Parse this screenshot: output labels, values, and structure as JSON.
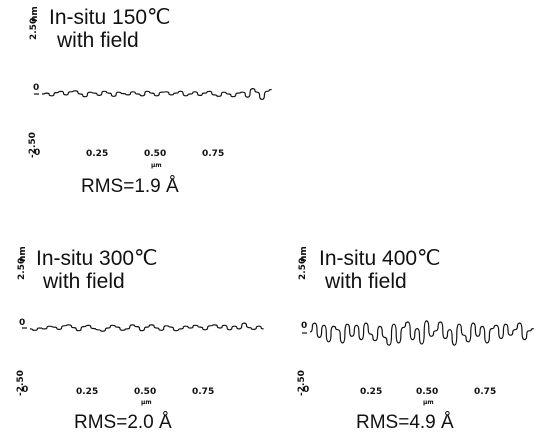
{
  "chart_data": [
    {
      "type": "line",
      "title": "In-situ 150℃",
      "subtitle": "with field",
      "annotation": "RMS=1.9 Å",
      "xlabel": "µm",
      "ylabel": "nm",
      "ytick_labels": [
        "2.50",
        "0",
        "-2.50"
      ],
      "xtick_labels": [
        "0",
        "0.25",
        "0.50",
        "0.75"
      ],
      "ylim": [
        -2.5,
        2.5
      ],
      "xlim": [
        0,
        1.0
      ],
      "series": [
        {
          "x": [
            0.0,
            0.02,
            0.04,
            0.06,
            0.08,
            0.1,
            0.12,
            0.14,
            0.16,
            0.18,
            0.2,
            0.22,
            0.24,
            0.26,
            0.28,
            0.3,
            0.32,
            0.34,
            0.36,
            0.38,
            0.4,
            0.42,
            0.44,
            0.46,
            0.48,
            0.5,
            0.52,
            0.54,
            0.56,
            0.58,
            0.6,
            0.62,
            0.64,
            0.66,
            0.68,
            0.7,
            0.72,
            0.74,
            0.76,
            0.78,
            0.8,
            0.82,
            0.84,
            0.86,
            0.88,
            0.9,
            0.92,
            0.94,
            0.96
          ],
          "y": [
            0.0,
            0.1,
            -0.2,
            0.15,
            0.3,
            -0.1,
            0.25,
            0.35,
            0.0,
            -0.3,
            0.2,
            0.1,
            -0.15,
            0.3,
            0.1,
            -0.25,
            0.2,
            0.05,
            -0.1,
            0.25,
            0.0,
            -0.2,
            0.3,
            0.1,
            -0.2,
            0.2,
            0.25,
            -0.1,
            0.1,
            0.3,
            -0.2,
            0.0,
            0.25,
            -0.15,
            0.1,
            0.3,
            -0.1,
            -0.25,
            0.2,
            0.0,
            -0.3,
            0.1,
            0.2,
            -0.35,
            0.6,
            0.2,
            -0.6,
            0.3,
            0.5
          ]
        }
      ]
    },
    {
      "type": "line",
      "title": "In-situ 300℃",
      "subtitle": "with field",
      "annotation": "RMS=2.0 Å",
      "xlabel": "µm",
      "ylabel": "nm",
      "ytick_labels": [
        "2.50",
        "0",
        "-2.50"
      ],
      "xtick_labels": [
        "0",
        "0.25",
        "0.50",
        "0.75"
      ],
      "ylim": [
        -2.5,
        2.5
      ],
      "xlim": [
        0,
        1.0
      ],
      "series": [
        {
          "x": [
            0.0,
            0.02,
            0.04,
            0.06,
            0.08,
            0.1,
            0.12,
            0.14,
            0.16,
            0.18,
            0.2,
            0.22,
            0.24,
            0.26,
            0.28,
            0.3,
            0.32,
            0.34,
            0.36,
            0.38,
            0.4,
            0.42,
            0.44,
            0.46,
            0.48,
            0.5,
            0.52,
            0.54,
            0.56,
            0.58,
            0.6,
            0.62,
            0.64,
            0.66,
            0.68,
            0.7,
            0.72,
            0.74,
            0.76,
            0.78,
            0.8,
            0.82,
            0.84,
            0.86,
            0.88,
            0.9,
            0.92,
            0.94,
            0.96
          ],
          "y": [
            -0.1,
            -0.25,
            0.0,
            -0.1,
            0.2,
            0.1,
            -0.15,
            0.25,
            0.35,
            0.05,
            -0.3,
            0.15,
            0.3,
            -0.05,
            -0.2,
            -0.35,
            0.0,
            0.3,
            0.1,
            -0.25,
            -0.1,
            0.35,
            0.15,
            -0.3,
            0.1,
            0.35,
            0.0,
            -0.25,
            0.25,
            0.1,
            -0.3,
            -0.1,
            0.2,
            0.0,
            0.3,
            0.1,
            -0.2,
            0.25,
            0.35,
            0.0,
            0.3,
            -0.2,
            0.2,
            -0.1,
            0.55,
            0.05,
            -0.15,
            0.2,
            -0.1
          ]
        }
      ]
    },
    {
      "type": "line",
      "title": "In-situ 400℃",
      "subtitle": "with field",
      "annotation": "RMS=4.9 Å",
      "xlabel": "µm",
      "ylabel": "nm",
      "ytick_labels": [
        "2.50",
        "0",
        "-2.50"
      ],
      "xtick_labels": [
        "0",
        "0.25",
        "0.50",
        "0.75"
      ],
      "ylim": [
        -2.5,
        2.5
      ],
      "xlim": [
        0,
        1.0
      ],
      "series": [
        {
          "x": [
            0.0,
            0.02,
            0.04,
            0.06,
            0.08,
            0.1,
            0.12,
            0.14,
            0.16,
            0.18,
            0.2,
            0.22,
            0.24,
            0.26,
            0.28,
            0.3,
            0.32,
            0.34,
            0.36,
            0.38,
            0.4,
            0.42,
            0.44,
            0.46,
            0.48,
            0.5,
            0.52,
            0.54,
            0.56,
            0.58,
            0.6,
            0.62,
            0.64,
            0.66,
            0.68,
            0.7,
            0.72,
            0.74,
            0.76,
            0.78,
            0.8,
            0.82,
            0.84,
            0.86,
            0.88,
            0.9,
            0.92,
            0.94,
            0.96
          ],
          "y": [
            0.1,
            0.9,
            -0.4,
            0.7,
            -0.8,
            0.6,
            0.3,
            -0.9,
            0.8,
            -0.3,
            0.7,
            -0.6,
            0.9,
            -0.1,
            -0.7,
            0.6,
            -0.4,
            -1.1,
            0.8,
            -0.9,
            0.5,
            1.0,
            -0.6,
            0.4,
            -1.0,
            1.1,
            -0.3,
            0.2,
            1.0,
            -0.5,
            0.3,
            -1.1,
            0.8,
            -0.2,
            -0.8,
            0.9,
            -0.3,
            0.6,
            -0.9,
            0.4,
            0.7,
            -0.5,
            0.8,
            -0.2,
            0.3,
            0.9,
            -0.6,
            0.2,
            0.4
          ]
        }
      ]
    }
  ]
}
